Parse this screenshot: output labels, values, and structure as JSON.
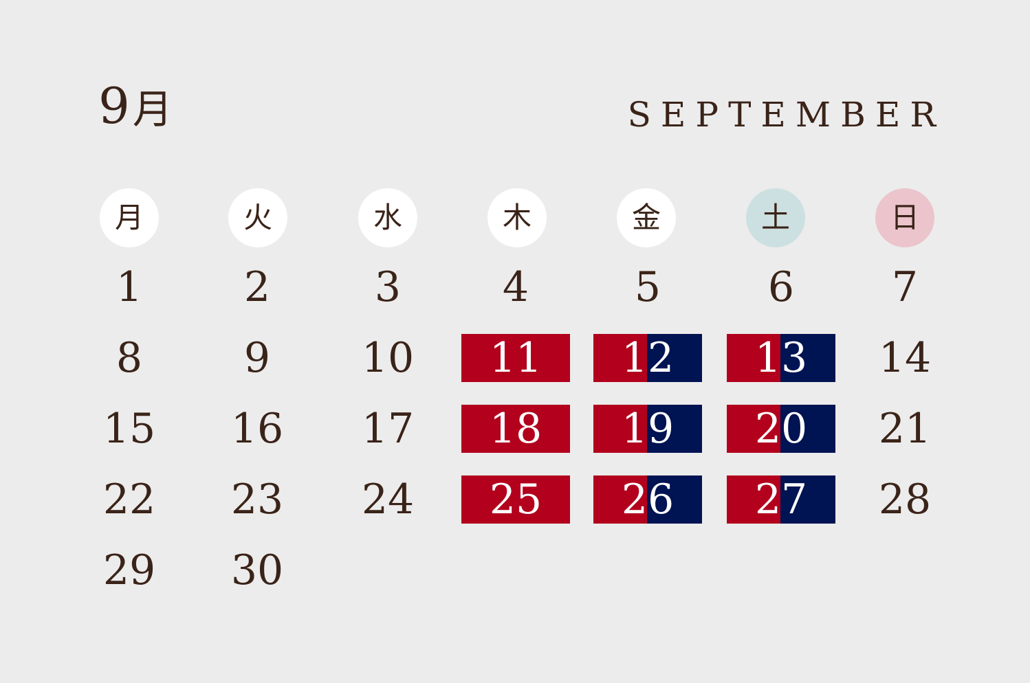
{
  "header": {
    "month_number": "9",
    "month_kanji": "月",
    "month_name_en": "SEPTEMBER"
  },
  "weekdays": [
    "月",
    "火",
    "水",
    "木",
    "金",
    "土",
    "日"
  ],
  "days": [
    "1",
    "2",
    "3",
    "4",
    "5",
    "6",
    "7",
    "8",
    "9",
    "10",
    "11",
    "12",
    "13",
    "14",
    "15",
    "16",
    "17",
    "18",
    "19",
    "20",
    "21",
    "22",
    "23",
    "24",
    "25",
    "26",
    "27",
    "28",
    "29",
    "30"
  ],
  "highlights": {
    "red": [
      "11",
      "18",
      "25"
    ],
    "red_navy": [
      "12",
      "13",
      "19",
      "20",
      "26",
      "27"
    ]
  },
  "colors": {
    "background": "#ececec",
    "text": "#3a2318",
    "weekday_circle": "#ffffff",
    "saturday_circle": "#cde0e1",
    "sunday_circle": "#ebc4cc",
    "highlight_red": "#b2001d",
    "highlight_navy": "#001352"
  }
}
